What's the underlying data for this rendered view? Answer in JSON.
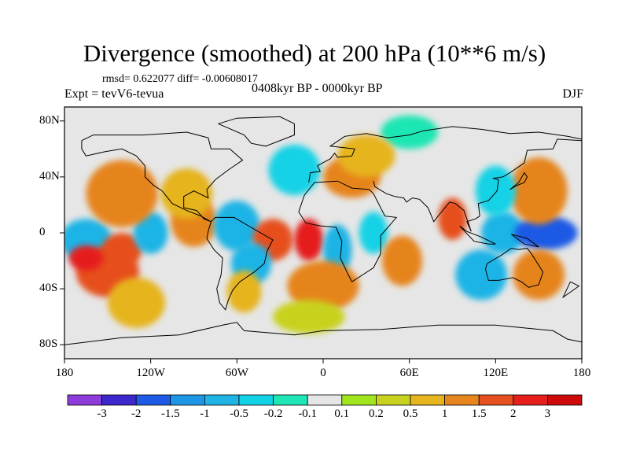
{
  "title": "Divergence (smoothed) at 200 hPa (10**6 m/s)",
  "stats": "rmsd= 0.622077  diff= -0.00608017",
  "experiment": "Expt = tevV6-tevua",
  "period": "0408kyr BP - 0000kyr BP",
  "season": "DJF",
  "map": {
    "projection": "cylindrical equidistant",
    "lon_range": [
      -180,
      180
    ],
    "lat_range": [
      -90,
      90
    ],
    "y_ticks": [
      {
        "label": "80N",
        "lat": 80
      },
      {
        "label": "40N",
        "lat": 40
      },
      {
        "label": "0",
        "lat": 0
      },
      {
        "label": "40S",
        "lat": -40
      },
      {
        "label": "80S",
        "lat": -80
      }
    ],
    "x_ticks": [
      {
        "label": "180",
        "lon": -180
      },
      {
        "label": "120W",
        "lon": -120
      },
      {
        "label": "60W",
        "lon": -60
      },
      {
        "label": "0",
        "lon": 0
      },
      {
        "label": "60E",
        "lon": 60
      },
      {
        "label": "120E",
        "lon": 120
      },
      {
        "label": "180",
        "lon": 180
      }
    ],
    "background_color": "#e6e6e6",
    "coastline_color": "#000000"
  },
  "colorbar": {
    "labels": [
      "-3",
      "-2",
      "-1.5",
      "-1",
      "-0.5",
      "-0.2",
      "-0.1",
      "0.1",
      "0.2",
      "0.5",
      "1",
      "1.5",
      "2",
      "3"
    ],
    "colors": [
      "#8c3cd9",
      "#3c28cc",
      "#1e5ae6",
      "#1e96e6",
      "#1eb4e6",
      "#14d2e6",
      "#1ee6b4",
      "#e6e6e6",
      "#a0e61e",
      "#c8d21e",
      "#e6b41e",
      "#e6841e",
      "#e6501e",
      "#e61e1e",
      "#cc0a0a"
    ]
  },
  "field_blobs": [
    {
      "lon": -165,
      "lat": -5,
      "rx": 18,
      "ry": 5,
      "value": -1.0
    },
    {
      "lon": -140,
      "lat": -12,
      "rx": 14,
      "ry": 4,
      "value": 1.5
    },
    {
      "lon": -150,
      "lat": -28,
      "rx": 22,
      "ry": 6,
      "value": 1.5
    },
    {
      "lon": -165,
      "lat": -18,
      "rx": 12,
      "ry": 3,
      "value": 2.0
    },
    {
      "lon": -120,
      "lat": 0,
      "rx": 12,
      "ry": 5,
      "value": -1.0
    },
    {
      "lon": -90,
      "lat": 8,
      "rx": 16,
      "ry": 6,
      "value": 1.0
    },
    {
      "lon": -140,
      "lat": 28,
      "rx": 25,
      "ry": 8,
      "value": 1.0
    },
    {
      "lon": -95,
      "lat": 28,
      "rx": 18,
      "ry": 6,
      "value": 0.5
    },
    {
      "lon": -60,
      "lat": 5,
      "rx": 16,
      "ry": 6,
      "value": -1.0
    },
    {
      "lon": -35,
      "lat": -5,
      "rx": 14,
      "ry": 5,
      "value": 1.5
    },
    {
      "lon": -10,
      "lat": -5,
      "rx": 10,
      "ry": 5,
      "value": 2.0
    },
    {
      "lon": -50,
      "lat": -22,
      "rx": 14,
      "ry": 5,
      "value": -1.0
    },
    {
      "lon": 10,
      "lat": -12,
      "rx": 10,
      "ry": 6,
      "value": -1.0
    },
    {
      "lon": 35,
      "lat": 0,
      "rx": 10,
      "ry": 5,
      "value": -0.5
    },
    {
      "lon": 55,
      "lat": -20,
      "rx": 14,
      "ry": 6,
      "value": 1.0
    },
    {
      "lon": 90,
      "lat": 10,
      "rx": 10,
      "ry": 5,
      "value": 1.5
    },
    {
      "lon": 125,
      "lat": 0,
      "rx": 15,
      "ry": 5,
      "value": -1.0
    },
    {
      "lon": 155,
      "lat": 0,
      "rx": 22,
      "ry": 4,
      "value": -2.0
    },
    {
      "lon": 150,
      "lat": 30,
      "rx": 20,
      "ry": 8,
      "value": 1.0
    },
    {
      "lon": 120,
      "lat": 30,
      "rx": 14,
      "ry": 6,
      "value": -0.5
    },
    {
      "lon": -20,
      "lat": 45,
      "rx": 18,
      "ry": 6,
      "value": -0.5
    },
    {
      "lon": 20,
      "lat": 40,
      "rx": 20,
      "ry": 5,
      "value": 1.0
    },
    {
      "lon": 0,
      "lat": -38,
      "rx": 25,
      "ry": 6,
      "value": 1.0
    },
    {
      "lon": 110,
      "lat": -30,
      "rx": 18,
      "ry": 6,
      "value": -1.0
    },
    {
      "lon": 150,
      "lat": -30,
      "rx": 18,
      "ry": 6,
      "value": 1.0
    },
    {
      "lon": -130,
      "lat": -50,
      "rx": 20,
      "ry": 6,
      "value": 0.5
    },
    {
      "lon": -10,
      "lat": -60,
      "rx": 25,
      "ry": 4,
      "value": 0.2
    },
    {
      "lon": 60,
      "lat": 72,
      "rx": 20,
      "ry": 4,
      "value": -0.2
    },
    {
      "lon": 30,
      "lat": 55,
      "rx": 20,
      "ry": 5,
      "value": 0.5
    },
    {
      "lon": -55,
      "lat": -42,
      "rx": 12,
      "ry": 5,
      "value": 0.5
    }
  ]
}
